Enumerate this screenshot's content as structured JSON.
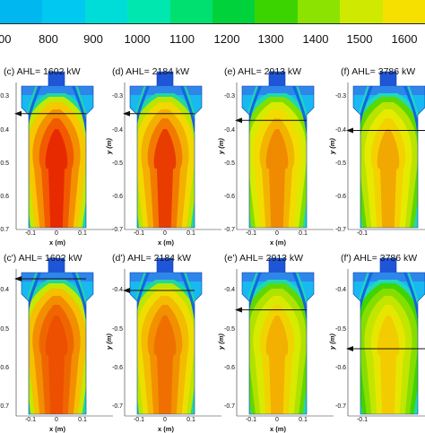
{
  "colorbar": {
    "colors": [
      "#00b7ef",
      "#00c8f0",
      "#00ddd8",
      "#00e8b0",
      "#00e070",
      "#00d23c",
      "#3cd400",
      "#8ce200",
      "#cfea00",
      "#f5e000"
    ],
    "ticks": [
      "00",
      "800",
      "900",
      "1000",
      "1100",
      "1200",
      "1300",
      "1400",
      "1500",
      "1600"
    ]
  },
  "panels": [
    {
      "title": "(c) AHL= 1602 kW",
      "arrow_depth": "-0.35",
      "theme": "hot",
      "yticks": [
        "-0.3",
        "-0.4",
        "-0.5",
        "-0.6",
        "-0.7"
      ],
      "xticks": [
        "-0.1",
        "0",
        "0.1"
      ],
      "ylabel": "",
      "xlabel": "x (m)"
    },
    {
      "title": "(d) AHL= 2184 kW",
      "arrow_depth": "-0.35",
      "theme": "warm",
      "yticks": [
        "-0.3",
        "-0.4",
        "-0.5",
        "-0.6",
        "-0.7"
      ],
      "xticks": [
        "-0.1",
        "0",
        "0.1"
      ],
      "ylabel": "y (m)",
      "xlabel": "x (m)"
    },
    {
      "title": "(e) AHL= 2913 kW",
      "arrow_depth": "-0.37",
      "theme": "mid",
      "yticks": [
        "-0.3",
        "-0.4",
        "-0.5",
        "-0.6",
        "-0.7"
      ],
      "xticks": [
        "-0.1",
        "0",
        "0.1"
      ],
      "ylabel": "y (m)",
      "xlabel": "x (m)"
    },
    {
      "title": "(f) AHL= 3786 kW",
      "arrow_depth": "-0.40",
      "theme": "cool",
      "yticks": [
        "-0.3",
        "-0.4",
        "-0.5",
        "-0.6",
        "-0.7"
      ],
      "xticks": [
        "-0.1"
      ],
      "ylabel": "y (m)",
      "xlabel": ""
    },
    {
      "title": "(c') AHL= 1602 kW",
      "arrow_depth": "-0.37",
      "theme": "hot2",
      "yticks": [
        "-0.4",
        "-0.5",
        "-0.6",
        "-0.7"
      ],
      "xticks": [
        "-0.1",
        "0",
        "0.1"
      ],
      "ylabel": "",
      "xlabel": "x (m)"
    },
    {
      "title": "(d') AHL= 2184 kW",
      "arrow_depth": "-0.40",
      "theme": "warm2",
      "yticks": [
        "-0.4",
        "-0.5",
        "-0.6",
        "-0.7"
      ],
      "xticks": [
        "-0.1",
        "0",
        "0.1"
      ],
      "ylabel": "y (m)",
      "xlabel": "x (m)"
    },
    {
      "title": "(e') AHL= 2913 kW",
      "arrow_depth": "-0.45",
      "theme": "mid2",
      "yticks": [
        "-0.4",
        "-0.5",
        "-0.6",
        "-0.7"
      ],
      "xticks": [
        "-0.1",
        "0",
        "0.1"
      ],
      "ylabel": "y (m)",
      "xlabel": "x (m)"
    },
    {
      "title": "(f') AHL= 3786 kW",
      "arrow_depth": "-0.55",
      "theme": "cool2",
      "yticks": [
        "-0.4",
        "-0.5",
        "-0.6",
        "-0.7"
      ],
      "xticks": [
        "-0.1"
      ],
      "ylabel": "y (m)",
      "xlabel": ""
    }
  ],
  "themes": {
    "hot": [
      "#18b8f0",
      "#22d6a0",
      "#c4e800",
      "#f6c800",
      "#f49000",
      "#f25a00",
      "#e82a00"
    ],
    "warm": [
      "#18b8f0",
      "#22d6a0",
      "#b8e600",
      "#f2d800",
      "#f4b000",
      "#f27a00",
      "#e83c00"
    ],
    "mid": [
      "#18b8f0",
      "#20d8b0",
      "#7ee000",
      "#d8ea00",
      "#f2dc00",
      "#f3b400",
      "#f08a00"
    ],
    "cool": [
      "#18b8f0",
      "#20d8c0",
      "#5ad800",
      "#b8e400",
      "#e6ea00",
      "#f4d200",
      "#f1a800"
    ],
    "hot2": [
      "#18b8f0",
      "#22d6a0",
      "#c4e800",
      "#f4c000",
      "#f28e00",
      "#ef6600",
      "#ec5000"
    ],
    "warm2": [
      "#18b8f0",
      "#22d6a0",
      "#bce600",
      "#eede00",
      "#f4bc00",
      "#f29000",
      "#ef7000"
    ],
    "mid2": [
      "#18b8f0",
      "#20d8b0",
      "#60d800",
      "#b0e200",
      "#d8ea00",
      "#f0d400",
      "#f3b000"
    ],
    "cool2": [
      "#18b8f0",
      "#20d8c0",
      "#40d400",
      "#86de00",
      "#c2e600",
      "#e6e600",
      "#f2cc00"
    ]
  }
}
